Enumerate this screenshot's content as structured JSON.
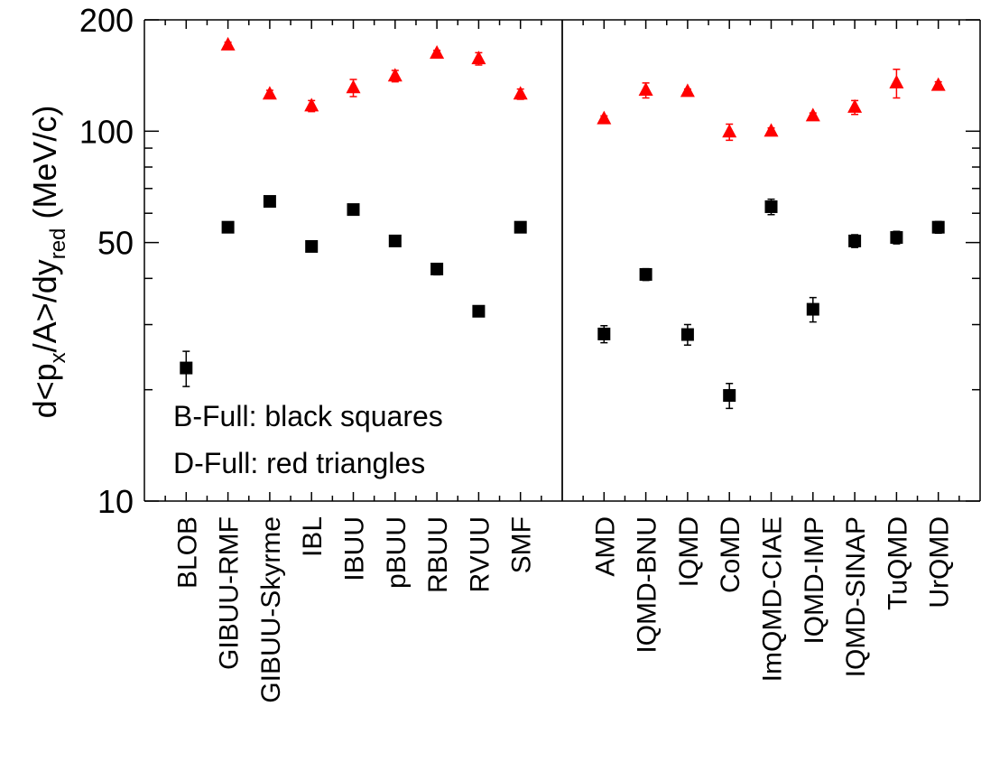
{
  "chart_data": [
    {
      "type": "scatter",
      "y_label": [
        "d<p",
        "x",
        "/A>/dy",
        "red",
        " (MeV/c)"
      ],
      "annotations": [
        "B-Full: black squares",
        "D-Full: red triangles"
      ],
      "log_y": true,
      "ylim": [
        10,
        200
      ],
      "yticks": [
        10,
        50,
        100,
        200
      ],
      "yminor": [
        20,
        30,
        40,
        60,
        70,
        80,
        90
      ],
      "categories": [
        "BLOB",
        "GIBUU-RMF",
        "GIBUU-Skyrme",
        "IBL",
        "IBUU",
        "pBUU",
        "RBUU",
        "RVUU",
        "SMF"
      ],
      "series": [
        {
          "color": "#000000",
          "marker": "square",
          "values": [
            22.9,
            55,
            64.6,
            48.8,
            61.4,
            50.5,
            42.4,
            32.6,
            55
          ],
          "errors": [
            2.5,
            1,
            1.5,
            1.5,
            1,
            1,
            1.5,
            1,
            1.5
          ]
        },
        {
          "color": "#ff0000",
          "marker": "triangle",
          "values": [
            null,
            171,
            126,
            117,
            131,
            141,
            162.5,
            157,
            126
          ],
          "errors": [
            null,
            3,
            3,
            4,
            7,
            5,
            3,
            6,
            4
          ]
        }
      ]
    },
    {
      "type": "scatter",
      "log_y": true,
      "ylim": [
        10,
        200
      ],
      "yticks": [
        10,
        50,
        100,
        200
      ],
      "yminor": [
        20,
        30,
        40,
        60,
        70,
        80,
        90
      ],
      "categories": [
        "AMD",
        "IQMD-BNU",
        "IQMD",
        "CoMD",
        "ImQMD-CIAE",
        "IQMD-IMP",
        "IQMD-SINAP",
        "TuQMD",
        "UrQMD"
      ],
      "series": [
        {
          "color": "#000000",
          "marker": "square",
          "values": [
            28.3,
            41,
            28.2,
            19.3,
            62.5,
            33,
            50.5,
            51.6,
            55
          ],
          "errors": [
            1.5,
            1.5,
            1.8,
            1.5,
            3,
            2.5,
            2,
            2,
            2
          ]
        },
        {
          "color": "#ff0000",
          "marker": "triangle",
          "values": [
            108,
            129,
            128,
            99.5,
            100,
            110,
            116,
            135,
            133
          ],
          "errors": [
            2,
            6,
            2,
            5,
            2,
            2,
            5,
            12,
            3
          ]
        }
      ]
    }
  ]
}
